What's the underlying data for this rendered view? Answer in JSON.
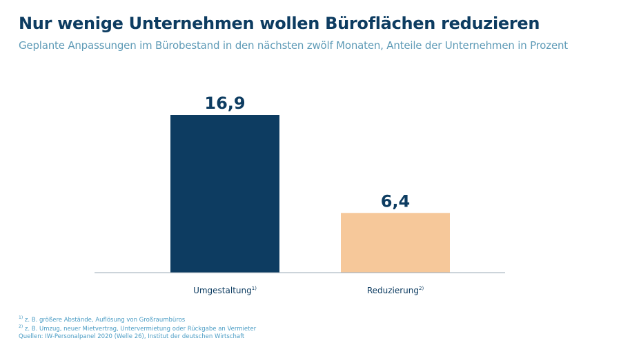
{
  "title": "Nur wenige Unternehmen wollen Büroflächen reduzieren",
  "subtitle": "Geplante Anpassungen im Bürobestand in den nächsten zwölf Monaten, Anteile der Unternehmen  in Prozent",
  "footnotes": {
    "f1_mark": "1)",
    "f1": "z. B. größere Abstände, Auflösung von Großraumbüros",
    "f2_mark": "2)",
    "f2": "z. B. Umzug, neuer Mietvertrag, Untervermietung oder Rückgabe an Vermieter",
    "source": "Quellen: IW-Personalpanel 2020 (Welle 26), Institut der deutschen Wirtschaft"
  },
  "chart_data": {
    "type": "bar",
    "categories": [
      "Umgestaltung",
      "Reduzierung"
    ],
    "category_marks": [
      "1)",
      "2)"
    ],
    "values": [
      16.9,
      6.4
    ],
    "value_labels": [
      "16,9",
      "6,4"
    ],
    "colors": [
      "#0d3c61",
      "#f6c89a"
    ],
    "ylim": [
      0,
      16.9
    ],
    "grid": false,
    "legend": "none"
  }
}
